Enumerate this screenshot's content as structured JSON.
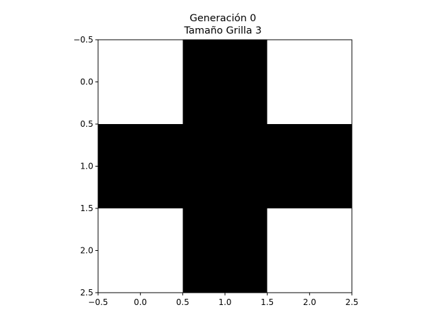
{
  "chart_data": {
    "type": "heatmap",
    "title_lines": [
      "Generación 0",
      "Tamaño Grilla 3"
    ],
    "grid_size": 3,
    "cells": [
      [
        0,
        1,
        0
      ],
      [
        1,
        1,
        1
      ],
      [
        0,
        1,
        0
      ]
    ],
    "colormap": {
      "0": "#ffffff",
      "1": "#000000"
    },
    "xlim": [
      -0.5,
      2.5
    ],
    "ylim": [
      2.5,
      -0.5
    ],
    "y_inverted": true,
    "xticks": [
      -0.5,
      0.0,
      0.5,
      1.0,
      1.5,
      2.0,
      2.5
    ],
    "xtick_labels": [
      "−0.5",
      "0.0",
      "0.5",
      "1.0",
      "1.5",
      "2.0",
      "2.5"
    ],
    "yticks": [
      -0.5,
      0.0,
      0.5,
      1.0,
      1.5,
      2.0,
      2.5
    ],
    "ytick_labels": [
      "−0.5",
      "0.0",
      "0.5",
      "1.0",
      "1.5",
      "2.0",
      "2.5"
    ],
    "grid": false,
    "axis_color": "#000000"
  }
}
